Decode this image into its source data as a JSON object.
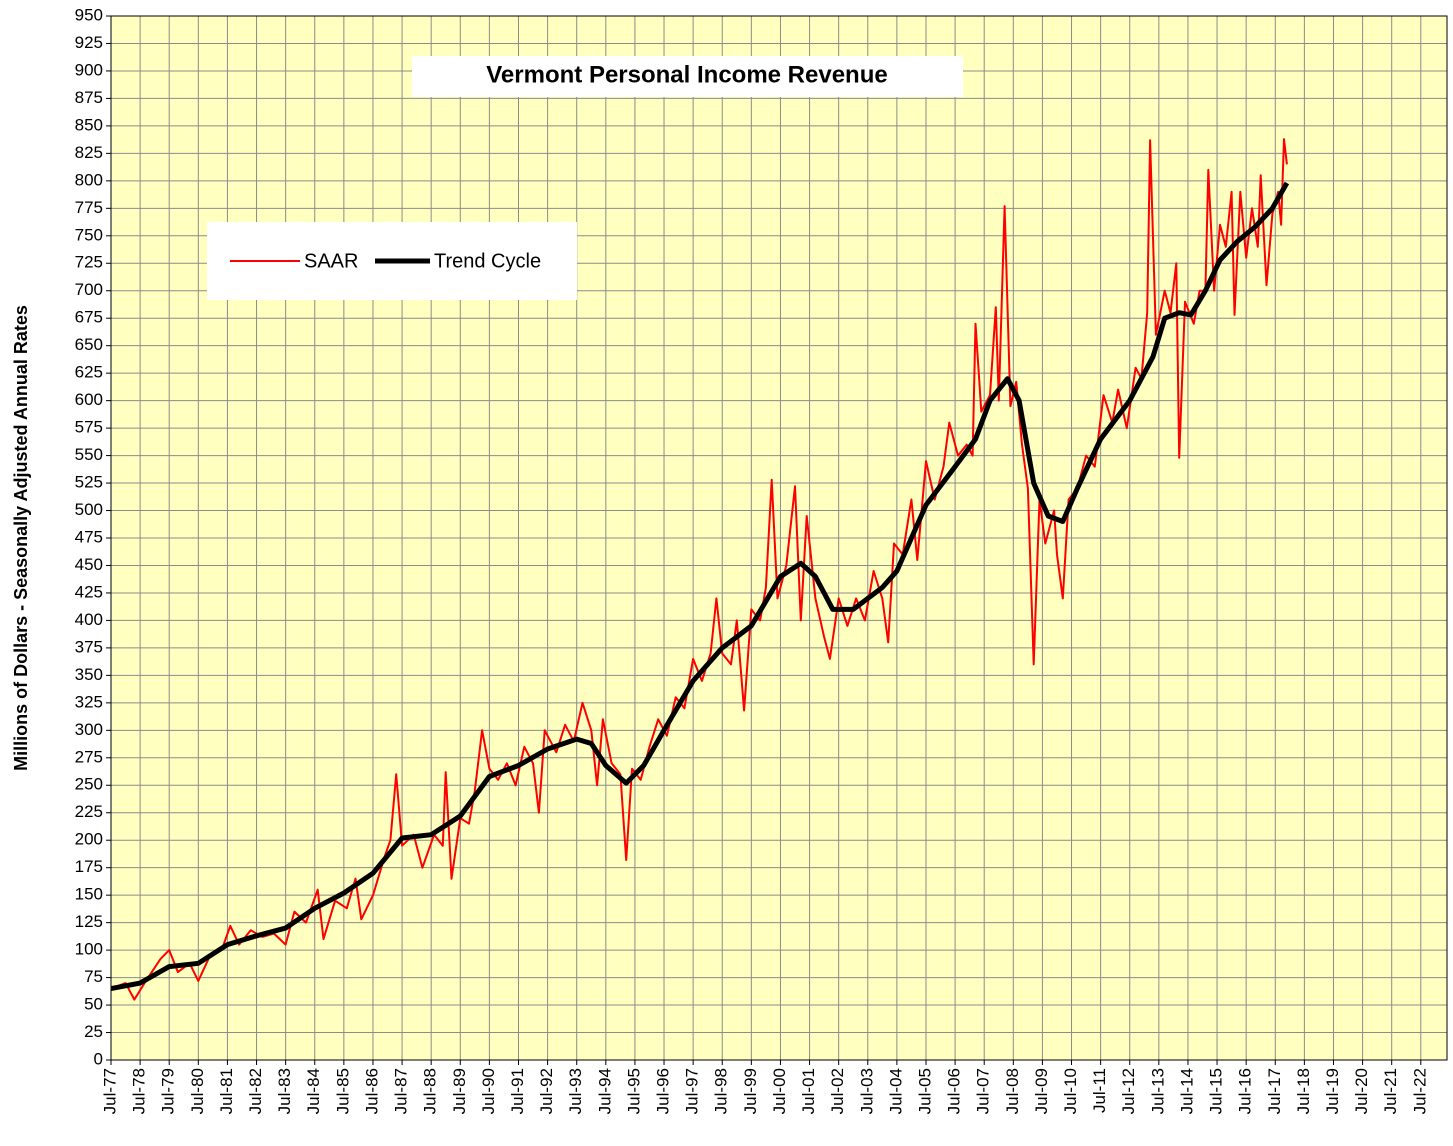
{
  "chart_data": {
    "type": "line",
    "title": "Vermont Personal Income Revenue",
    "y_label": "Millions of Dollars - Seasonally Adjusted Annual Rates",
    "xlim": [
      1977.5,
      2023.4
    ],
    "ylim": [
      0,
      950
    ],
    "grid": true,
    "legend": "upper left",
    "xticks": [
      {
        "value": 1977.5,
        "label": "Jul-77"
      },
      {
        "value": 1978.5,
        "label": "Jul-78"
      },
      {
        "value": 1979.5,
        "label": "Jul-79"
      },
      {
        "value": 1980.5,
        "label": "Jul-80"
      },
      {
        "value": 1981.5,
        "label": "Jul-81"
      },
      {
        "value": 1982.5,
        "label": "Jul-82"
      },
      {
        "value": 1983.5,
        "label": "Jul-83"
      },
      {
        "value": 1984.5,
        "label": "Jul-84"
      },
      {
        "value": 1985.5,
        "label": "Jul-85"
      },
      {
        "value": 1986.5,
        "label": "Jul-86"
      },
      {
        "value": 1987.5,
        "label": "Jul-87"
      },
      {
        "value": 1988.5,
        "label": "Jul-88"
      },
      {
        "value": 1989.5,
        "label": "Jul-89"
      },
      {
        "value": 1990.5,
        "label": "Jul-90"
      },
      {
        "value": 1991.5,
        "label": "Jul-91"
      },
      {
        "value": 1992.5,
        "label": "Jul-92"
      },
      {
        "value": 1993.5,
        "label": "Jul-93"
      },
      {
        "value": 1994.5,
        "label": "Jul-94"
      },
      {
        "value": 1995.5,
        "label": "Jul-95"
      },
      {
        "value": 1996.5,
        "label": "Jul-96"
      },
      {
        "value": 1997.5,
        "label": "Jul-97"
      },
      {
        "value": 1998.5,
        "label": "Jul-98"
      },
      {
        "value": 1999.5,
        "label": "Jul-99"
      },
      {
        "value": 2000.5,
        "label": "Jul-00"
      },
      {
        "value": 2001.5,
        "label": "Jul-01"
      },
      {
        "value": 2002.5,
        "label": "Jul-02"
      },
      {
        "value": 2003.5,
        "label": "Jul-03"
      },
      {
        "value": 2004.5,
        "label": "Jul-04"
      },
      {
        "value": 2005.5,
        "label": "Jul-05"
      },
      {
        "value": 2006.5,
        "label": "Jul-06"
      },
      {
        "value": 2007.5,
        "label": "Jul-07"
      },
      {
        "value": 2008.5,
        "label": "Jul-08"
      },
      {
        "value": 2009.5,
        "label": "Jul-09"
      },
      {
        "value": 2010.5,
        "label": "Jul-10"
      },
      {
        "value": 2011.5,
        "label": "Jul-11"
      },
      {
        "value": 2012.5,
        "label": "Jul-12"
      },
      {
        "value": 2013.5,
        "label": "Jul-13"
      },
      {
        "value": 2014.5,
        "label": "Jul-14"
      },
      {
        "value": 2015.5,
        "label": "Jul-15"
      },
      {
        "value": 2016.5,
        "label": "Jul-16"
      },
      {
        "value": 2017.5,
        "label": "Jul-17"
      },
      {
        "value": 2018.5,
        "label": "Jul-18"
      },
      {
        "value": 2019.5,
        "label": "Jul-19"
      },
      {
        "value": 2020.5,
        "label": "Jul-20"
      },
      {
        "value": 2021.5,
        "label": "Jul-21"
      },
      {
        "value": 2022.5,
        "label": "Jul-22"
      }
    ],
    "yticks": [
      0,
      25,
      50,
      75,
      100,
      125,
      150,
      175,
      200,
      225,
      250,
      275,
      300,
      325,
      350,
      375,
      400,
      425,
      450,
      475,
      500,
      525,
      550,
      575,
      600,
      625,
      650,
      675,
      700,
      725,
      750,
      775,
      800,
      825,
      850,
      875,
      900,
      925,
      950
    ],
    "series": [
      {
        "name": "SAAR",
        "color": "#ff0000",
        "x": [
          1977.5,
          1978.0,
          1978.3,
          1978.7,
          1979.2,
          1979.5,
          1979.8,
          1980.2,
          1980.5,
          1980.9,
          1981.3,
          1981.6,
          1981.9,
          1982.3,
          1982.7,
          1983.1,
          1983.5,
          1983.8,
          1984.2,
          1984.6,
          1984.8,
          1985.2,
          1985.6,
          1985.9,
          1986.1,
          1986.5,
          1986.9,
          1987.1,
          1987.3,
          1987.5,
          1987.9,
          1988.2,
          1988.6,
          1988.9,
          1989.0,
          1989.2,
          1989.5,
          1989.8,
          1990.0,
          1990.25,
          1990.5,
          1990.8,
          1991.1,
          1991.4,
          1991.7,
          1992.0,
          1992.2,
          1992.4,
          1992.8,
          1993.1,
          1993.4,
          1993.7,
          1994.0,
          1994.2,
          1994.4,
          1994.7,
          1995.0,
          1995.2,
          1995.4,
          1995.7,
          1996.0,
          1996.3,
          1996.6,
          1996.9,
          1997.2,
          1997.5,
          1997.8,
          1998.1,
          1998.3,
          1998.5,
          1998.8,
          1999.0,
          1999.25,
          1999.5,
          1999.8,
          2000.0,
          2000.2,
          2000.4,
          2000.7,
          2001.0,
          2001.2,
          2001.4,
          2001.7,
          2002.0,
          2002.2,
          2002.5,
          2002.8,
          2003.1,
          2003.4,
          2003.7,
          2004.0,
          2004.2,
          2004.4,
          2004.7,
          2005.0,
          2005.2,
          2005.5,
          2005.8,
          2006.1,
          2006.3,
          2006.6,
          2006.9,
          2007.1,
          2007.2,
          2007.4,
          2007.7,
          2007.9,
          2008.0,
          2008.2,
          2008.4,
          2008.6,
          2008.8,
          2009.0,
          2009.2,
          2009.4,
          2009.6,
          2009.9,
          2010.0,
          2010.2,
          2010.4,
          2010.7,
          2011.0,
          2011.3,
          2011.6,
          2011.9,
          2012.1,
          2012.4,
          2012.7,
          2012.9,
          2013.1,
          2013.2,
          2013.4,
          2013.7,
          2013.9,
          2014.1,
          2014.2,
          2014.4,
          2014.7,
          2014.9,
          2015.1,
          2015.2,
          2015.4,
          2015.6,
          2015.8,
          2016.0,
          2016.1,
          2016.3,
          2016.5,
          2016.7,
          2016.9,
          2017.0,
          2017.2,
          2017.4,
          2017.6,
          2017.7,
          2017.8,
          2017.9
        ],
        "values": [
          65,
          70,
          55,
          72,
          92,
          100,
          80,
          88,
          72,
          95,
          100,
          122,
          105,
          118,
          112,
          115,
          105,
          135,
          125,
          155,
          110,
          145,
          138,
          165,
          128,
          150,
          185,
          200,
          260,
          195,
          205,
          175,
          205,
          195,
          262,
          165,
          220,
          215,
          245,
          300,
          265,
          255,
          270,
          250,
          285,
          270,
          225,
          300,
          280,
          305,
          290,
          325,
          300,
          250,
          310,
          270,
          260,
          182,
          265,
          255,
          285,
          310,
          295,
          330,
          320,
          365,
          345,
          370,
          420,
          370,
          360,
          400,
          318,
          410,
          400,
          430,
          528,
          420,
          450,
          522,
          400,
          495,
          420,
          385,
          365,
          420,
          395,
          420,
          400,
          445,
          420,
          380,
          470,
          460,
          510,
          455,
          545,
          510,
          540,
          580,
          550,
          560,
          550,
          670,
          590,
          605,
          685,
          600,
          777,
          595,
          617,
          560,
          520,
          360,
          510,
          470,
          500,
          460,
          420,
          510,
          520,
          550,
          540,
          605,
          580,
          610,
          575,
          630,
          620,
          680,
          837,
          660,
          700,
          680,
          725,
          548,
          690,
          670,
          700,
          700,
          810,
          700,
          760,
          740,
          790,
          678,
          790,
          730,
          775,
          740,
          805,
          705,
          770,
          790,
          760,
          838,
          815
        ]
      },
      {
        "name": "Trend Cycle",
        "color": "#000000",
        "x": [
          1977.5,
          1978.5,
          1979.5,
          1980.5,
          1981.5,
          1982.5,
          1983.5,
          1984.5,
          1985.5,
          1986.5,
          1987.5,
          1988.5,
          1989.5,
          1990.5,
          1991.5,
          1992.5,
          1993.5,
          1994.0,
          1994.5,
          1995.2,
          1995.8,
          1996.5,
          1997.5,
          1998.5,
          1999.5,
          2000.5,
          2001.2,
          2001.7,
          2002.3,
          2003.0,
          2004.0,
          2004.5,
          2005.5,
          2006.5,
          2007.2,
          2007.7,
          2008.3,
          2008.7,
          2009.2,
          2009.7,
          2010.2,
          2010.7,
          2011.5,
          2012.5,
          2013.3,
          2013.7,
          2014.2,
          2014.6,
          2015.1,
          2015.6,
          2016.2,
          2016.8,
          2017.4,
          2017.9
        ],
        "values": [
          65,
          70,
          85,
          88,
          105,
          113,
          120,
          138,
          152,
          170,
          202,
          205,
          222,
          258,
          268,
          283,
          292,
          288,
          268,
          252,
          268,
          300,
          345,
          375,
          395,
          440,
          452,
          440,
          410,
          410,
          430,
          445,
          505,
          540,
          565,
          600,
          620,
          600,
          525,
          495,
          490,
          520,
          565,
          600,
          640,
          675,
          680,
          678,
          700,
          728,
          745,
          758,
          775,
          798
        ]
      }
    ]
  }
}
